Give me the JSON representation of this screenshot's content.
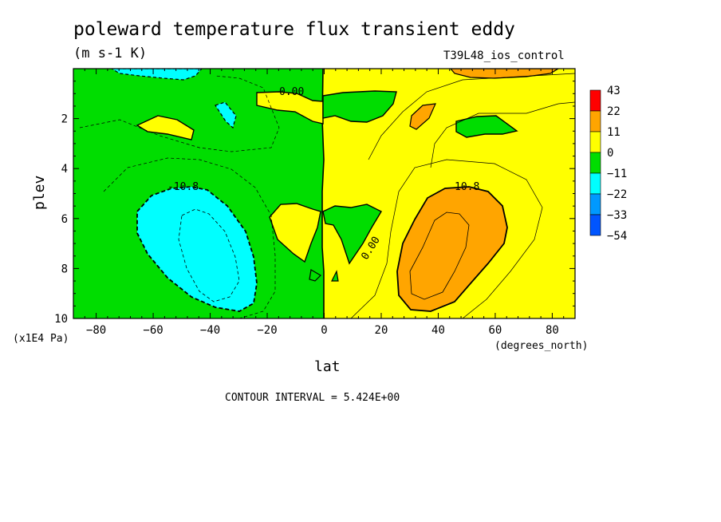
{
  "chart_data": {
    "type": "contour",
    "title": "poleward temperature flux transient eddy",
    "units": "(m s-1 K)",
    "run": "T39L48_ios_control",
    "xlabel": "lat",
    "xunits": "(degrees_north)",
    "ylabel": "plev",
    "yunits": "(x1E4 Pa)",
    "xlim": [
      -88,
      88
    ],
    "ylim": [
      10,
      0
    ],
    "xticks": [
      -80,
      -60,
      -40,
      -20,
      0,
      20,
      40,
      60,
      80
    ],
    "yticks": [
      2,
      4,
      6,
      8,
      10
    ],
    "contour_interval": "CONTOUR INTERVAL = 5.424E+00",
    "contour_labels": [
      "0.00",
      "-10.8",
      "10.8",
      "0.00"
    ],
    "colorbar": {
      "labels": [
        "43",
        "22",
        "11",
        "0",
        "-11",
        "-22",
        "-33",
        "-54"
      ],
      "colors": [
        "#ff0000",
        "#ffa500",
        "#ffff00",
        "#00dd00",
        "#00ffff",
        "#0099ff",
        "#0055ff"
      ]
    },
    "regions": [
      {
        "label": "yellow",
        "desc": "positive flux, northern hemisphere",
        "value_range": [
          0,
          11
        ]
      },
      {
        "label": "green",
        "desc": "negative flux, southern hemisphere",
        "value_range": [
          -11,
          0
        ]
      },
      {
        "label": "orange",
        "desc": "max NH mid-latitude",
        "value_range": [
          11,
          22
        ],
        "center": [
          45,
          7.5
        ]
      },
      {
        "label": "cyan",
        "desc": "min SH mid-latitude",
        "value_range": [
          -22,
          -11
        ],
        "center": [
          -45,
          7.5
        ]
      }
    ]
  }
}
